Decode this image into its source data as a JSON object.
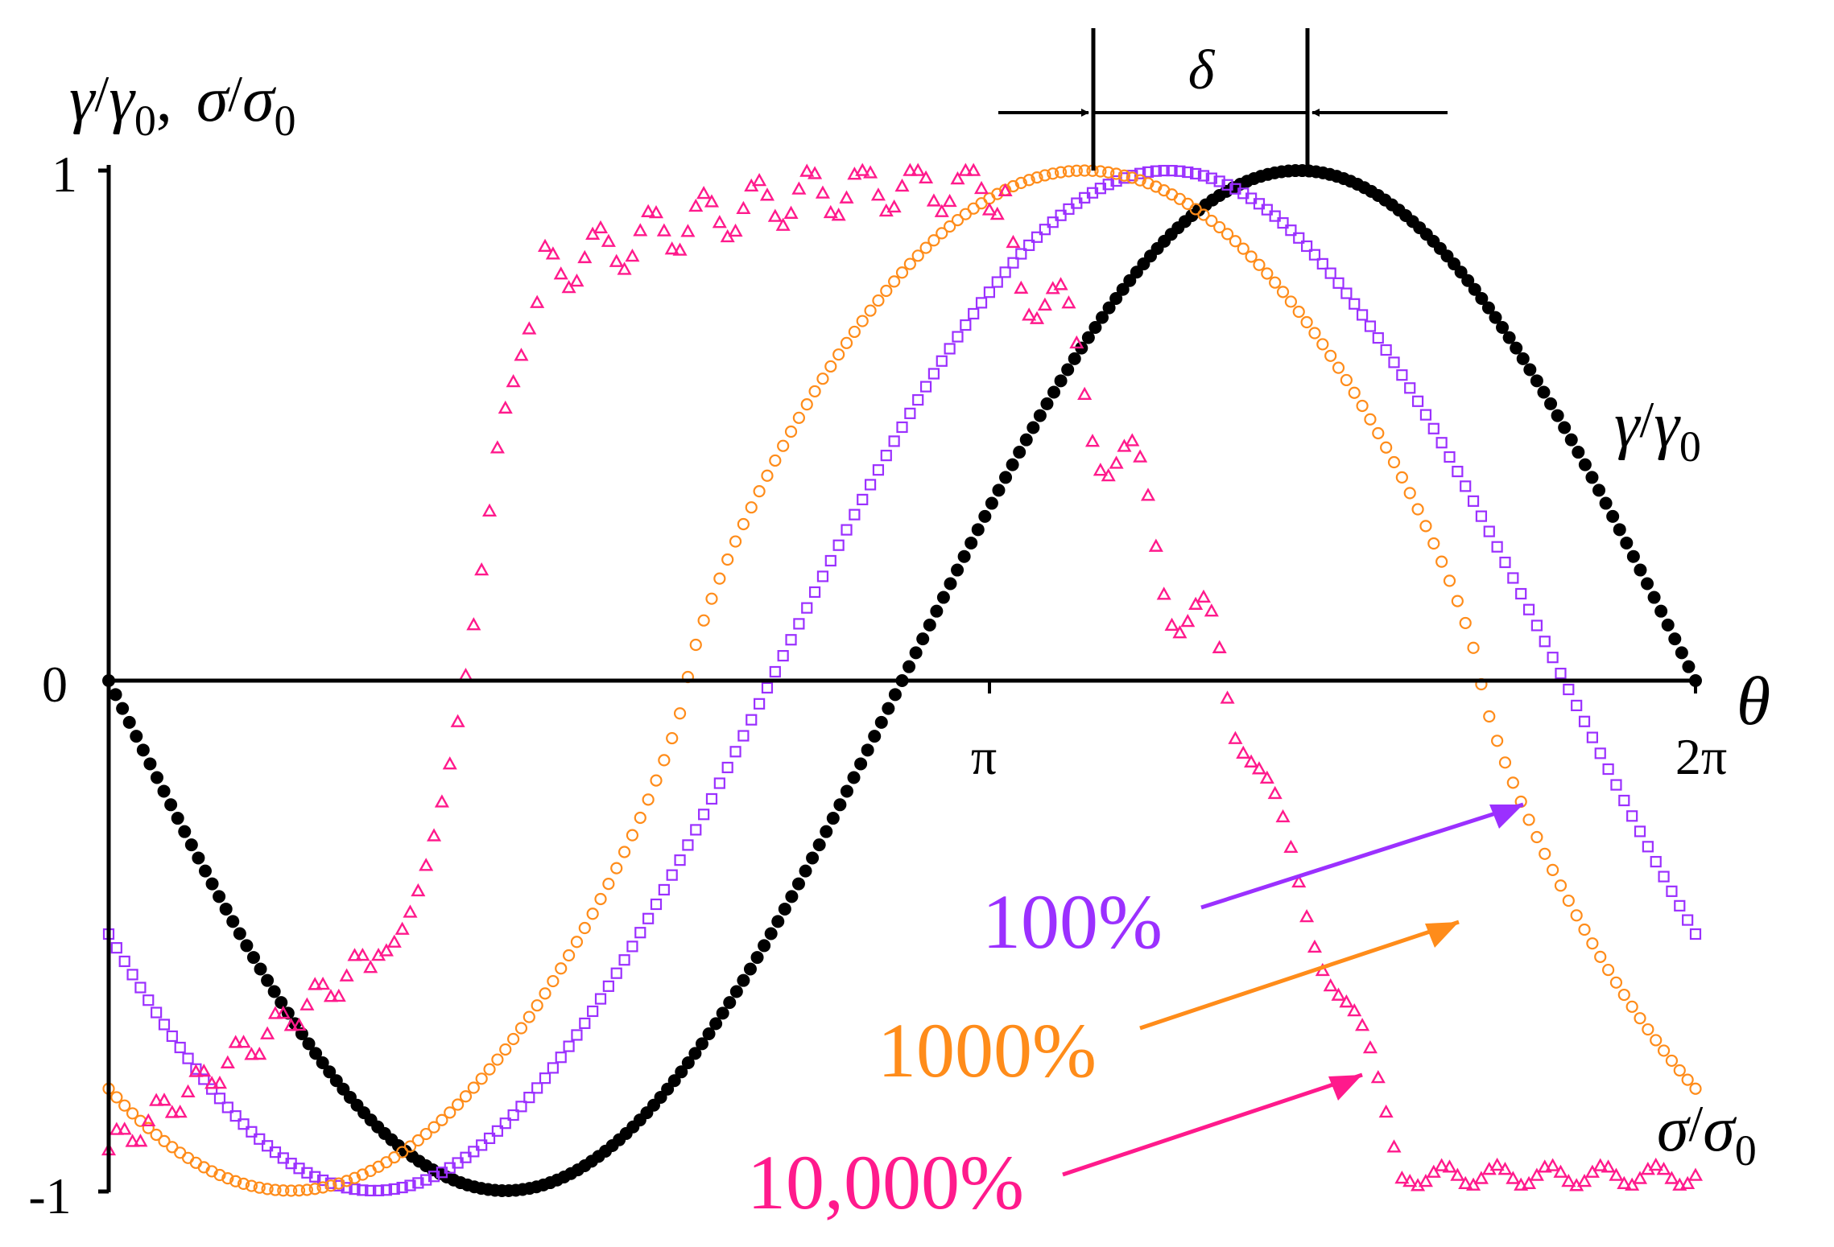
{
  "chart_data": {
    "type": "scatter",
    "ylabel_parts": {
      "g": "γ",
      "slash": "/",
      "g0": "γ",
      "sub": "0",
      "comma": ",",
      "s": "σ",
      "s0": "σ"
    },
    "xlabel": "θ",
    "x_ticks": [
      {
        "value": 0,
        "label": ""
      },
      {
        "value": 3.14159,
        "label": "π"
      },
      {
        "value": 6.28319,
        "label": "2π"
      }
    ],
    "y_ticks": [
      {
        "value": -1,
        "label": "-1"
      },
      {
        "value": 0,
        "label": "0"
      },
      {
        "value": 1,
        "label": "1"
      }
    ],
    "xlim": [
      0,
      6.2832
    ],
    "ylim": [
      -1,
      1
    ],
    "delta_label": "δ",
    "strain_curve_label": "γ/γ0",
    "stress_curve_label": "σ/σ0",
    "strain_series": {
      "marker": "filled-circle",
      "color": "#000000",
      "amplitude": 1,
      "function": "-sin(θ)"
    },
    "series": [
      {
        "name": "100%",
        "color": "#9B30FF",
        "marker": "square",
        "phase_shift": 0.52,
        "description": "nearly sinusoidal stress response"
      },
      {
        "name": "1000%",
        "color": "#FF8C1A",
        "marker": "circle",
        "phase_shift": 0.85,
        "description": "square-ish sinusoidal stress response"
      },
      {
        "name": "10,000%",
        "color": "#FF1A8C",
        "marker": "triangle",
        "description": "plateau stress response with oscillations"
      }
    ],
    "colors": {
      "axis": "#000000",
      "strain": "#000000",
      "s100": "#9B30FF",
      "s1000": "#FF8C1A",
      "s10000": "#FF1A8C"
    }
  }
}
